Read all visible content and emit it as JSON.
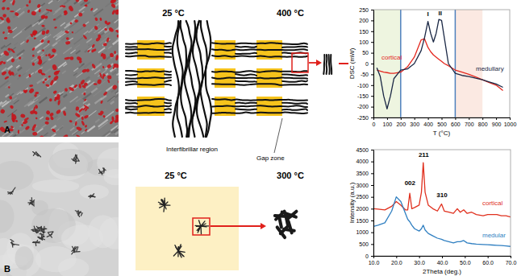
{
  "diagram": {
    "panel_labels": [
      "A",
      "B"
    ],
    "fibril_panel": {
      "temperatures": [
        "25 °C",
        "400 °C"
      ],
      "labels": [
        "Interfibrillar region",
        "Gap zone"
      ]
    },
    "crystal_panel": {
      "temperatures": [
        "25 °C",
        "300 °C"
      ]
    }
  },
  "chart_data": [
    {
      "type": "line",
      "x_label": "T (°C)",
      "y_label": "DSC (mW)",
      "xlim": [
        0,
        1000
      ],
      "ylim": [
        -250,
        250
      ],
      "xticks": [
        0,
        100,
        200,
        300,
        400,
        500,
        600,
        700,
        800,
        900,
        1000
      ],
      "yticks": [
        -250,
        -200,
        -150,
        -100,
        -50,
        0,
        50,
        100,
        150,
        200,
        250
      ],
      "grid": false,
      "x": [
        25,
        50,
        75,
        100,
        125,
        150,
        200,
        250,
        300,
        350,
        375,
        400,
        420,
        440,
        460,
        480,
        500,
        520,
        550,
        600,
        650,
        700,
        750,
        800,
        850,
        900,
        950
      ],
      "series": [
        {
          "name": "cortical",
          "color": "#e4281f",
          "values": [
            -30,
            -35,
            -40,
            -42,
            -45,
            -45,
            -40,
            -15,
            30,
            110,
            115,
            75,
            55,
            40,
            30,
            20,
            10,
            0,
            -10,
            -30,
            -40,
            -50,
            -62,
            -75,
            -88,
            -100,
            -125
          ]
        },
        {
          "name": "medullary",
          "color": "#1b2845",
          "values": [
            -20,
            -60,
            -150,
            -210,
            -150,
            -70,
            -30,
            -25,
            0,
            60,
            120,
            195,
            140,
            100,
            140,
            205,
            200,
            120,
            0,
            -45,
            -55,
            -60,
            -68,
            -75,
            -85,
            -95,
            -110
          ]
        }
      ],
      "annotations": [
        {
          "text": "I",
          "x": 400,
          "y": 215
        },
        {
          "text": "II",
          "x": 490,
          "y": 222
        }
      ],
      "shaded_ranges": [
        {
          "range": [
            0,
            200
          ],
          "color": "#eef5e0"
        },
        {
          "range": [
            600,
            800
          ],
          "color": "#fbe9e2"
        }
      ],
      "vertical_lines": [
        200,
        600
      ]
    },
    {
      "type": "line",
      "x_label": "2Theta (deg.)",
      "y_label": "Intensity (a.u.)",
      "xlim": [
        10,
        70
      ],
      "ylim": [
        0,
        4500
      ],
      "xticks": [
        {
          "value": 10,
          "label": "10.0"
        },
        {
          "value": 20,
          "label": "20.0"
        },
        {
          "value": 30,
          "label": "30.0"
        },
        {
          "value": 40,
          "label": "40.0"
        },
        {
          "value": 50,
          "label": "50.0"
        },
        {
          "value": 60,
          "label": "60.0"
        },
        {
          "value": 70,
          "label": "70.0"
        }
      ],
      "yticks": [
        0,
        500,
        1000,
        1500,
        2000,
        2500,
        3000,
        3500,
        4000,
        4500
      ],
      "grid": false,
      "x": [
        10,
        12,
        15,
        18,
        20,
        22,
        24,
        25,
        25.9,
        26.8,
        28,
        30,
        31,
        31.8,
        32.6,
        34,
        36,
        38,
        39.8,
        41,
        43,
        45,
        46.7,
        48,
        49.5,
        51,
        53,
        55,
        58,
        60,
        62,
        64,
        66,
        68,
        70
      ],
      "series": [
        {
          "name": "cortical",
          "color": "#e0301e",
          "values": [
            2000,
            1980,
            1950,
            2100,
            2300,
            2150,
            1950,
            1950,
            2650,
            2000,
            2050,
            2150,
            2700,
            3950,
            2700,
            2150,
            2000,
            1900,
            2200,
            1900,
            1850,
            1800,
            2000,
            1850,
            1950,
            1800,
            1850,
            1750,
            1700,
            1750,
            1750,
            1750,
            1700,
            1700,
            1650
          ]
        },
        {
          "name": "medular",
          "color": "#2f7fc1",
          "values": [
            1250,
            1300,
            1400,
            1900,
            2500,
            2300,
            1800,
            1550,
            1450,
            1300,
            1150,
            1050,
            1150,
            1300,
            1100,
            950,
            850,
            750,
            700,
            650,
            600,
            550,
            600,
            600,
            650,
            550,
            520,
            500,
            480,
            470,
            460,
            450,
            440,
            420,
            400
          ]
        }
      ],
      "annotations": [
        {
          "text": "002",
          "x": 26,
          "y": 2950
        },
        {
          "text": "211",
          "x": 32,
          "y": 4150
        },
        {
          "text": "310",
          "x": 40,
          "y": 2450
        }
      ]
    }
  ]
}
